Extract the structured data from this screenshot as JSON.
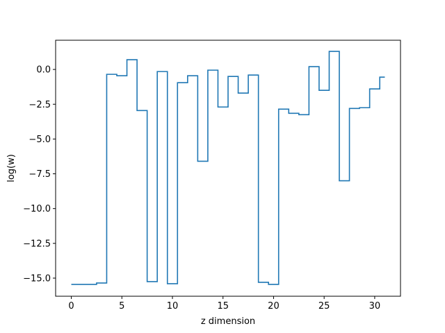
{
  "chart_data": {
    "type": "line",
    "drawstyle": "steps-mid",
    "title": "",
    "xlabel": "z dimension",
    "ylabel": "log(w)",
    "xlim": [
      -1.55,
      32.55
    ],
    "ylim": [
      -16.3,
      2.1
    ],
    "grid": false,
    "x_ticks": [
      0,
      5,
      10,
      15,
      20,
      25,
      30
    ],
    "y_ticks": [
      0.0,
      -2.5,
      -5.0,
      -7.5,
      -10.0,
      -12.5,
      -15.0
    ],
    "x_tick_labels": [
      "0",
      "5",
      "10",
      "15",
      "20",
      "25",
      "30"
    ],
    "y_tick_labels": [
      "0.0",
      "−2.5",
      "−5.0",
      "−7.5",
      "−10.0",
      "−12.5",
      "−15.0"
    ],
    "colors": {
      "series": "#1f77b4"
    },
    "series": [
      {
        "x": [
          0,
          1,
          2,
          3,
          4,
          5,
          6,
          7,
          8,
          9,
          10,
          11,
          12,
          13,
          14,
          15,
          16,
          17,
          18,
          19,
          20,
          21,
          22,
          23,
          24,
          25,
          26,
          27,
          28,
          29,
          30,
          31
        ],
        "values": [
          -15.45,
          -15.45,
          -15.45,
          -15.35,
          -0.35,
          -0.45,
          0.7,
          -2.95,
          -15.25,
          -0.15,
          -15.4,
          -0.95,
          -0.45,
          -6.6,
          -0.05,
          -2.7,
          -0.5,
          -1.7,
          -0.4,
          -15.3,
          -15.45,
          -2.85,
          -3.15,
          -3.25,
          0.2,
          -1.5,
          1.3,
          -8.0,
          -2.8,
          -2.75,
          -1.4,
          -0.55
        ]
      }
    ]
  }
}
